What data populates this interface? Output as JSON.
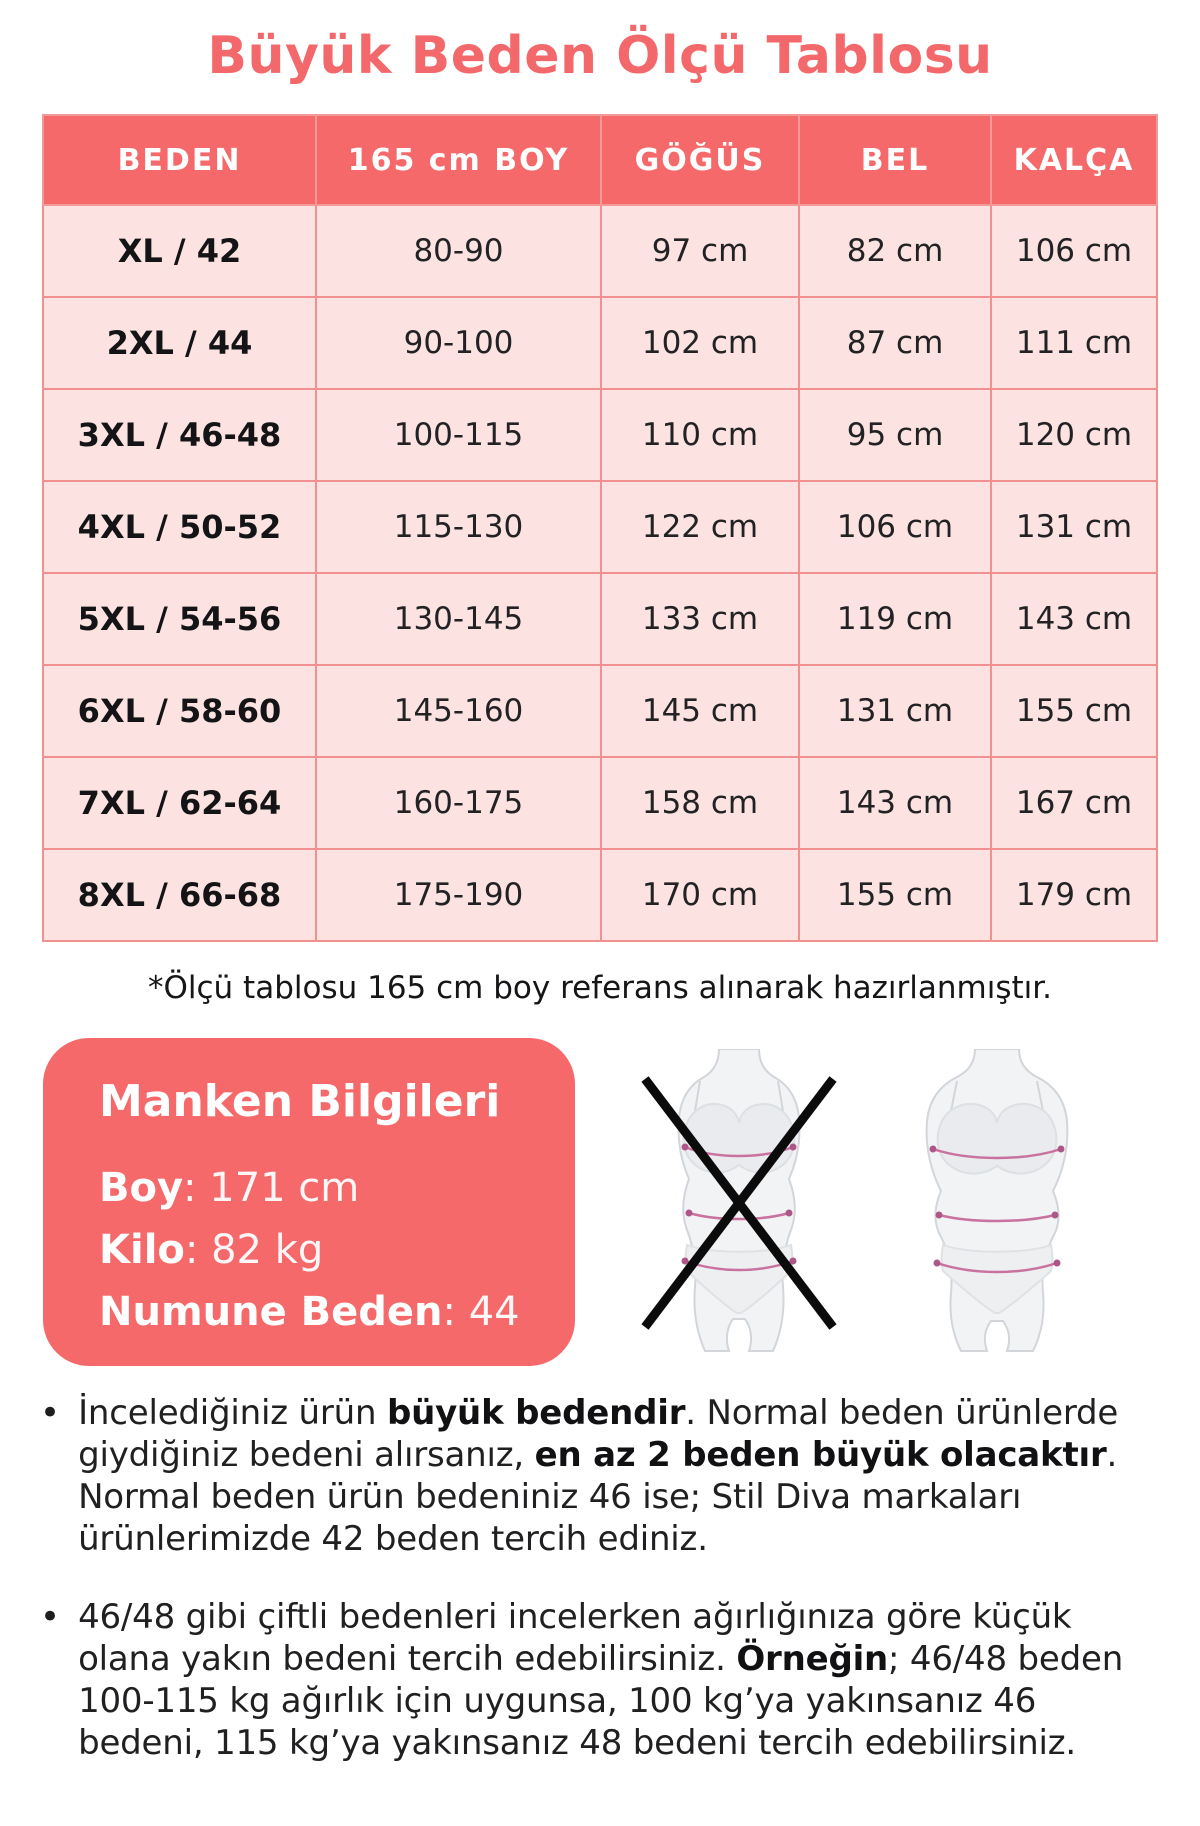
{
  "title": "Büyük Beden Ölçü Tablosu",
  "colors": {
    "coral": "#f5696a",
    "row_pink": "#fce3e2",
    "grid_pink": "#f0908f",
    "measure_line_pink": "#c9719f",
    "text_dark": "#1e1e20"
  },
  "table": {
    "headers": [
      "BEDEN",
      "165 cm BOY",
      "GÖĞÜS",
      "BEL",
      "KALÇA"
    ],
    "rows": [
      [
        "XL / 42",
        "80-90",
        "97 cm",
        "82 cm",
        "106 cm"
      ],
      [
        "2XL / 44",
        "90-100",
        "102 cm",
        "87 cm",
        "111 cm"
      ],
      [
        "3XL / 46-48",
        "100-115",
        "110 cm",
        "95 cm",
        "120 cm"
      ],
      [
        "4XL / 50-52",
        "115-130",
        "122 cm",
        "106 cm",
        "131 cm"
      ],
      [
        "5XL / 54-56",
        "130-145",
        "133 cm",
        "119 cm",
        "143 cm"
      ],
      [
        "6XL / 58-60",
        "145-160",
        "145 cm",
        "131 cm",
        "155 cm"
      ],
      [
        "7XL / 62-64",
        "160-175",
        "158 cm",
        "143 cm",
        "167 cm"
      ],
      [
        "8XL / 66-68",
        "175-190",
        "170 cm",
        "155 cm",
        "179 cm"
      ]
    ]
  },
  "footnote": "*Ölçü tablosu 165 cm boy referans alınarak hazırlanmıştır.",
  "model_info": {
    "title": "Manken Bilgileri",
    "lines": [
      {
        "label": "Boy",
        "value": ": 171 cm"
      },
      {
        "label": "Kilo",
        "value": ": 82 kg"
      },
      {
        "label": "Numune Beden",
        "value": ": 44"
      }
    ]
  },
  "icons": {
    "wrong_figure": "crossed-out-slim-body-icon",
    "right_figure": "plus-size-body-measurement-icon"
  },
  "notes": {
    "marker": "•",
    "items": [
      {
        "t1": "İncelediğiniz ürün ",
        "b1": "büyük bedendir",
        "t2": ". Normal beden ürünlerde giydiğiniz bedeni alırsanız, ",
        "b2": "en az 2 beden büyük olacaktır",
        "t3": ". Normal beden ürün bedeniniz 46 ise; Stil Diva markaları ürünlerimizde 42 beden tercih ediniz."
      },
      {
        "t1": "46/48 gibi çiftli bedenleri incelerken ağırlığınıza göre küçük olana yakın bedeni tercih edebilirsiniz. ",
        "b1": "Örneğin",
        "t2": "; 46/48 beden 100-115 kg ağırlık için uygunsa, 100 kg’ya yakınsanız 46 bedeni, 115 kg’ya yakınsanız 48 bedeni tercih edebilirsiniz."
      }
    ]
  }
}
